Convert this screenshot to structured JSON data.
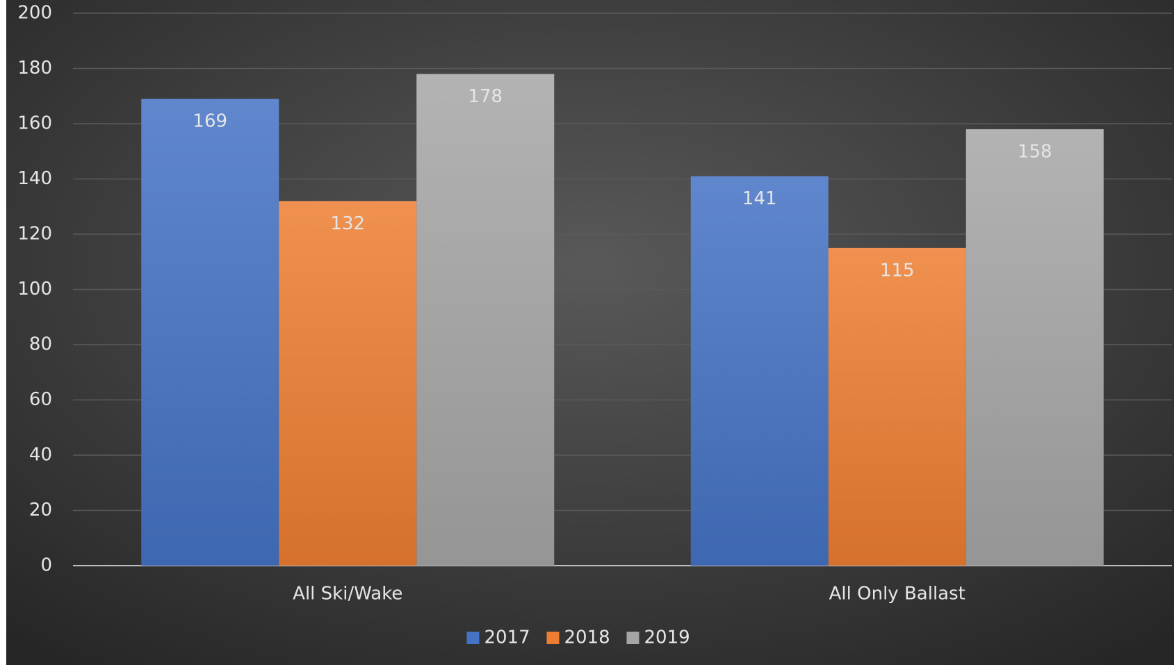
{
  "chart_data": {
    "type": "bar",
    "categories": [
      "All Ski/Wake",
      "All Only Ballast"
    ],
    "series": [
      {
        "name": "2017",
        "color": "#4472c4",
        "values": [
          169,
          141
        ]
      },
      {
        "name": "2018",
        "color": "#ed7d31",
        "values": [
          132,
          115
        ]
      },
      {
        "name": "2019",
        "color": "#a5a5a5",
        "values": [
          178,
          158
        ]
      }
    ],
    "ylim": [
      0,
      200
    ],
    "yticks": [
      0,
      20,
      40,
      60,
      80,
      100,
      120,
      140,
      160,
      180,
      200
    ],
    "grid": true,
    "legend": "bottom"
  }
}
